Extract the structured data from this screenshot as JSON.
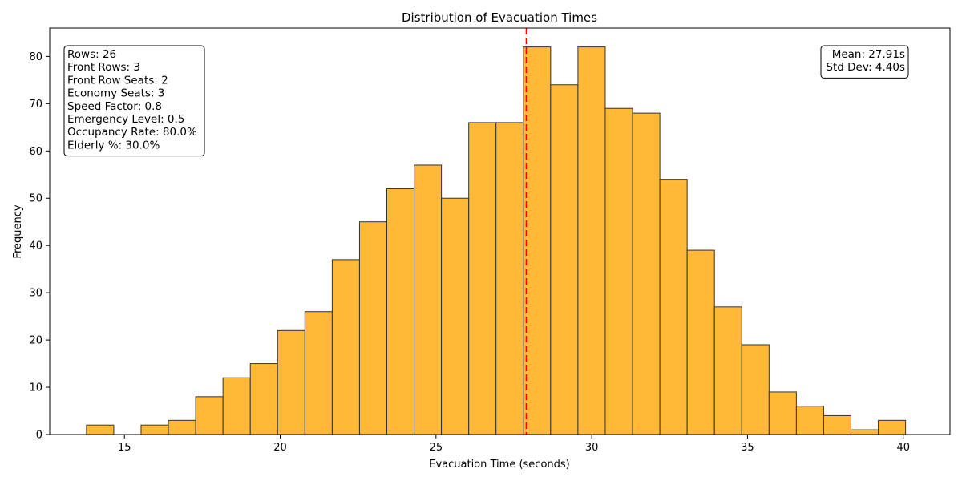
{
  "chart_data": {
    "type": "bar",
    "title": "Distribution of Evacuation Times",
    "xlabel": "Evacuation Time (seconds)",
    "ylabel": "Frequency",
    "xlim": [
      12.6,
      41.5
    ],
    "ylim": [
      0,
      86
    ],
    "x_ticks": [
      15,
      20,
      25,
      30,
      35,
      40
    ],
    "y_ticks": [
      0,
      10,
      20,
      30,
      40,
      50,
      60,
      70,
      80
    ],
    "bin_start": 13.78,
    "bin_width": 0.8765,
    "values": [
      2,
      0,
      2,
      3,
      8,
      12,
      15,
      22,
      26,
      37,
      45,
      52,
      57,
      50,
      66,
      66,
      82,
      74,
      82,
      69,
      68,
      54,
      39,
      27,
      19,
      9,
      6,
      4,
      1,
      3
    ],
    "bar_color": "#ffb937",
    "bar_edge_color": "#333333",
    "mean_line": {
      "x": 27.91,
      "color": "#ff0000"
    },
    "grid": false,
    "params_box": {
      "placement": "top-left",
      "lines": [
        "Rows: 26",
        "Front Rows: 3",
        "Front Row Seats: 2",
        "Economy Seats: 3",
        "Speed Factor: 0.8",
        "Emergency Level: 0.5",
        "Occupancy Rate: 80.0%",
        "Elderly %: 30.0%"
      ]
    },
    "stats_box": {
      "placement": "top-right",
      "lines": [
        "Mean: 27.91s",
        "Std Dev: 4.40s"
      ]
    }
  }
}
